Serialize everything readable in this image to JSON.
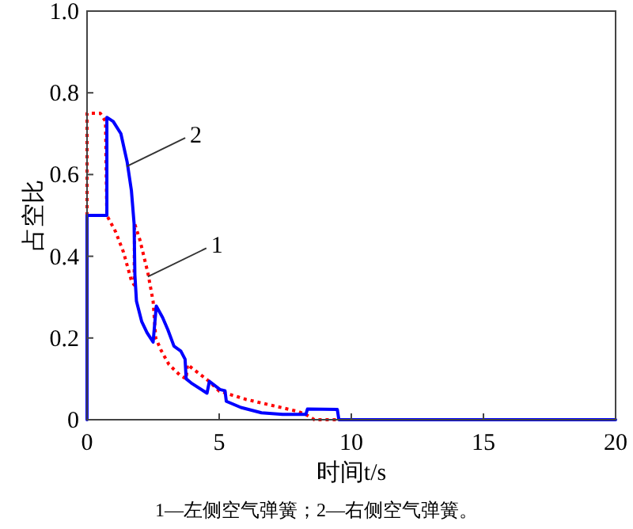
{
  "chart_data": {
    "type": "line",
    "xlabel": "时间t/s",
    "ylabel": "占空比",
    "xlim": [
      0,
      20
    ],
    "ylim": [
      0,
      1.0
    ],
    "xticks": [
      0,
      5,
      10,
      15,
      20
    ],
    "yticks": [
      0,
      0.2,
      0.4,
      0.6,
      0.8,
      {
        "value": 1.0,
        "label": "1.0"
      }
    ],
    "grid": false,
    "series": [
      {
        "color": "#ff0000",
        "line_style": "dotted",
        "x": [
          0,
          0,
          0.5,
          0.7,
          0.75,
          1.08,
          1.38,
          1.68,
          1.78,
          1.8,
          2.0,
          2.3,
          2.5,
          2.6,
          2.8,
          3.1,
          3.5,
          3.75,
          3.8,
          4.2,
          4.6,
          5.0,
          5.2,
          6.0,
          7.0,
          8.0,
          8.3,
          8.6,
          20
        ],
        "values": [
          0.5,
          0.75,
          0.75,
          0.73,
          0.5,
          0.46,
          0.41,
          0.34,
          0.33,
          0.48,
          0.44,
          0.36,
          0.29,
          0.2,
          0.17,
          0.135,
          0.11,
          0.1,
          0.135,
          0.115,
          0.095,
          0.07,
          0.066,
          0.05,
          0.035,
          0.02,
          0.012,
          0,
          0
        ]
      },
      {
        "color": "#0000ff",
        "line_style": "solid",
        "x": [
          0,
          0,
          0.75,
          0.75,
          0.99,
          1.28,
          1.52,
          1.68,
          1.78,
          1.81,
          1.87,
          2.07,
          2.27,
          2.5,
          2.62,
          2.86,
          3.06,
          3.29,
          3.55,
          3.71,
          3.75,
          3.94,
          4.54,
          4.63,
          5.03,
          5.22,
          5.27,
          5.82,
          6.6,
          7.4,
          8.28,
          8.34,
          9.47,
          9.53,
          20
        ],
        "values": [
          0,
          0.5,
          0.5,
          0.74,
          0.73,
          0.7,
          0.63,
          0.56,
          0.48,
          0.355,
          0.29,
          0.24,
          0.213,
          0.19,
          0.278,
          0.25,
          0.22,
          0.18,
          0.168,
          0.148,
          0.1,
          0.09,
          0.065,
          0.094,
          0.074,
          0.071,
          0.045,
          0.03,
          0.017,
          0.013,
          0.013,
          0.026,
          0.025,
          0,
          0
        ]
      }
    ],
    "annotations": [
      {
        "text": "2",
        "x": 1.5,
        "y": 0.62
      },
      {
        "text": "1",
        "x": 2.3,
        "y": 0.35
      },
      "1—左侧空气弹簧；2—右侧空气弹簧。"
    ]
  }
}
